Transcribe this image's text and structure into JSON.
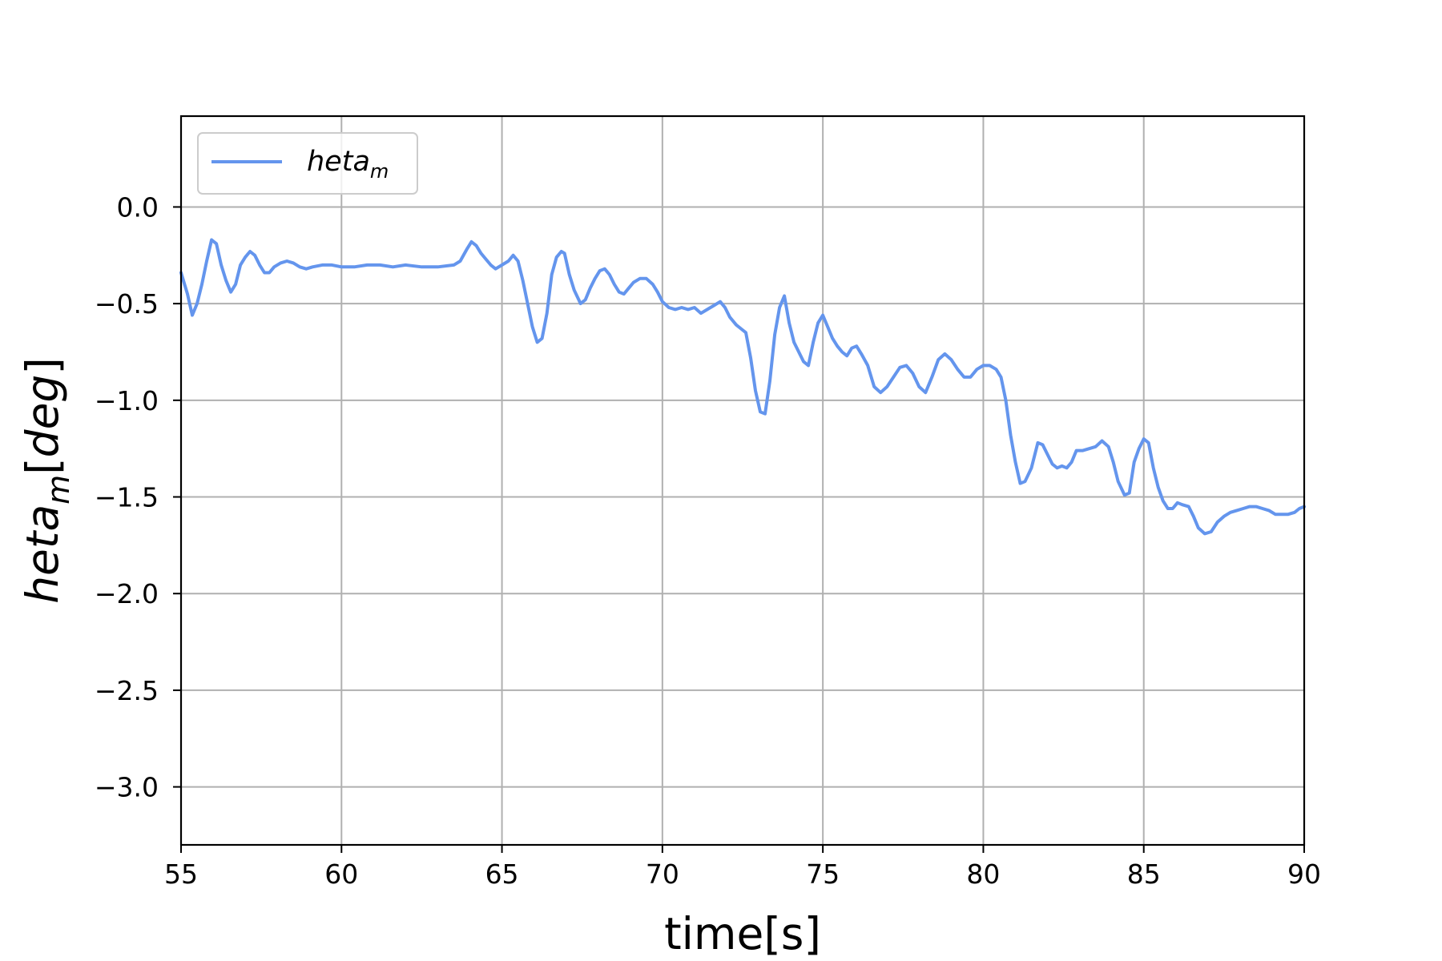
{
  "chart_data": {
    "type": "line",
    "xlabel": "time[s]",
    "ylabel_main": "heta",
    "ylabel_sub": "m",
    "ylabel_suffix": "[deg]",
    "xlim": [
      55,
      90
    ],
    "ylim": [
      -3.3,
      0.47
    ],
    "xticks": [
      55,
      60,
      65,
      70,
      75,
      80,
      85,
      90
    ],
    "xtick_labels": [
      "55",
      "60",
      "65",
      "70",
      "75",
      "80",
      "85",
      "90"
    ],
    "yticks": [
      0.0,
      -0.5,
      -1.0,
      -1.5,
      -2.0,
      -2.5,
      -3.0
    ],
    "ytick_labels": [
      "0.0",
      "−0.5",
      "−1.0",
      "−1.5",
      "−2.0",
      "−2.5",
      "−3.0"
    ],
    "grid": true,
    "legend_position": "top-left",
    "series": [
      {
        "name_main": "heta",
        "name_sub": "m",
        "color": "#6495ED",
        "points": [
          [
            55.0,
            -0.34
          ],
          [
            55.2,
            -0.45
          ],
          [
            55.35,
            -0.56
          ],
          [
            55.5,
            -0.5
          ],
          [
            55.65,
            -0.4
          ],
          [
            55.8,
            -0.28
          ],
          [
            55.95,
            -0.17
          ],
          [
            56.1,
            -0.19
          ],
          [
            56.25,
            -0.3
          ],
          [
            56.4,
            -0.38
          ],
          [
            56.55,
            -0.44
          ],
          [
            56.7,
            -0.4
          ],
          [
            56.85,
            -0.3
          ],
          [
            57.0,
            -0.26
          ],
          [
            57.15,
            -0.23
          ],
          [
            57.3,
            -0.25
          ],
          [
            57.45,
            -0.3
          ],
          [
            57.6,
            -0.34
          ],
          [
            57.75,
            -0.34
          ],
          [
            57.9,
            -0.31
          ],
          [
            58.1,
            -0.29
          ],
          [
            58.3,
            -0.28
          ],
          [
            58.5,
            -0.29
          ],
          [
            58.7,
            -0.31
          ],
          [
            58.9,
            -0.32
          ],
          [
            59.1,
            -0.31
          ],
          [
            59.4,
            -0.3
          ],
          [
            59.7,
            -0.3
          ],
          [
            60.0,
            -0.31
          ],
          [
            60.4,
            -0.31
          ],
          [
            60.8,
            -0.3
          ],
          [
            61.2,
            -0.3
          ],
          [
            61.6,
            -0.31
          ],
          [
            62.0,
            -0.3
          ],
          [
            62.5,
            -0.31
          ],
          [
            63.0,
            -0.31
          ],
          [
            63.5,
            -0.3
          ],
          [
            63.7,
            -0.28
          ],
          [
            63.9,
            -0.22
          ],
          [
            64.05,
            -0.18
          ],
          [
            64.2,
            -0.2
          ],
          [
            64.35,
            -0.24
          ],
          [
            64.5,
            -0.27
          ],
          [
            64.65,
            -0.3
          ],
          [
            64.8,
            -0.32
          ],
          [
            65.0,
            -0.3
          ],
          [
            65.2,
            -0.28
          ],
          [
            65.35,
            -0.25
          ],
          [
            65.5,
            -0.28
          ],
          [
            65.65,
            -0.38
          ],
          [
            65.8,
            -0.5
          ],
          [
            65.95,
            -0.62
          ],
          [
            66.1,
            -0.7
          ],
          [
            66.25,
            -0.68
          ],
          [
            66.4,
            -0.55
          ],
          [
            66.55,
            -0.35
          ],
          [
            66.7,
            -0.26
          ],
          [
            66.85,
            -0.23
          ],
          [
            66.95,
            -0.24
          ],
          [
            67.1,
            -0.35
          ],
          [
            67.25,
            -0.43
          ],
          [
            67.45,
            -0.5
          ],
          [
            67.6,
            -0.48
          ],
          [
            67.75,
            -0.42
          ],
          [
            67.9,
            -0.37
          ],
          [
            68.05,
            -0.33
          ],
          [
            68.2,
            -0.32
          ],
          [
            68.35,
            -0.35
          ],
          [
            68.5,
            -0.4
          ],
          [
            68.65,
            -0.44
          ],
          [
            68.8,
            -0.45
          ],
          [
            68.95,
            -0.42
          ],
          [
            69.1,
            -0.39
          ],
          [
            69.3,
            -0.37
          ],
          [
            69.5,
            -0.37
          ],
          [
            69.7,
            -0.4
          ],
          [
            69.85,
            -0.44
          ],
          [
            70.0,
            -0.49
          ],
          [
            70.2,
            -0.52
          ],
          [
            70.4,
            -0.53
          ],
          [
            70.6,
            -0.52
          ],
          [
            70.8,
            -0.53
          ],
          [
            71.0,
            -0.52
          ],
          [
            71.2,
            -0.55
          ],
          [
            71.4,
            -0.53
          ],
          [
            71.6,
            -0.51
          ],
          [
            71.8,
            -0.49
          ],
          [
            71.95,
            -0.52
          ],
          [
            72.1,
            -0.57
          ],
          [
            72.3,
            -0.61
          ],
          [
            72.45,
            -0.63
          ],
          [
            72.6,
            -0.65
          ],
          [
            72.75,
            -0.78
          ],
          [
            72.9,
            -0.95
          ],
          [
            73.05,
            -1.06
          ],
          [
            73.2,
            -1.07
          ],
          [
            73.35,
            -0.9
          ],
          [
            73.5,
            -0.66
          ],
          [
            73.65,
            -0.52
          ],
          [
            73.8,
            -0.46
          ],
          [
            73.95,
            -0.6
          ],
          [
            74.1,
            -0.7
          ],
          [
            74.25,
            -0.75
          ],
          [
            74.4,
            -0.8
          ],
          [
            74.55,
            -0.82
          ],
          [
            74.7,
            -0.7
          ],
          [
            74.85,
            -0.6
          ],
          [
            75.0,
            -0.56
          ],
          [
            75.15,
            -0.62
          ],
          [
            75.3,
            -0.68
          ],
          [
            75.45,
            -0.72
          ],
          [
            75.6,
            -0.75
          ],
          [
            75.75,
            -0.77
          ],
          [
            75.9,
            -0.73
          ],
          [
            76.05,
            -0.72
          ],
          [
            76.2,
            -0.76
          ],
          [
            76.4,
            -0.82
          ],
          [
            76.6,
            -0.93
          ],
          [
            76.8,
            -0.96
          ],
          [
            77.0,
            -0.93
          ],
          [
            77.2,
            -0.88
          ],
          [
            77.4,
            -0.83
          ],
          [
            77.6,
            -0.82
          ],
          [
            77.8,
            -0.86
          ],
          [
            78.0,
            -0.93
          ],
          [
            78.2,
            -0.96
          ],
          [
            78.4,
            -0.88
          ],
          [
            78.6,
            -0.79
          ],
          [
            78.8,
            -0.76
          ],
          [
            79.0,
            -0.79
          ],
          [
            79.2,
            -0.84
          ],
          [
            79.4,
            -0.88
          ],
          [
            79.6,
            -0.88
          ],
          [
            79.8,
            -0.84
          ],
          [
            80.0,
            -0.82
          ],
          [
            80.2,
            -0.82
          ],
          [
            80.4,
            -0.84
          ],
          [
            80.55,
            -0.88
          ],
          [
            80.7,
            -1.0
          ],
          [
            80.85,
            -1.18
          ],
          [
            81.0,
            -1.32
          ],
          [
            81.15,
            -1.43
          ],
          [
            81.3,
            -1.42
          ],
          [
            81.5,
            -1.35
          ],
          [
            81.7,
            -1.22
          ],
          [
            81.85,
            -1.23
          ],
          [
            82.0,
            -1.28
          ],
          [
            82.15,
            -1.33
          ],
          [
            82.3,
            -1.35
          ],
          [
            82.45,
            -1.34
          ],
          [
            82.6,
            -1.35
          ],
          [
            82.75,
            -1.32
          ],
          [
            82.9,
            -1.26
          ],
          [
            83.1,
            -1.26
          ],
          [
            83.3,
            -1.25
          ],
          [
            83.5,
            -1.24
          ],
          [
            83.7,
            -1.21
          ],
          [
            83.9,
            -1.24
          ],
          [
            84.05,
            -1.32
          ],
          [
            84.2,
            -1.42
          ],
          [
            84.4,
            -1.49
          ],
          [
            84.55,
            -1.48
          ],
          [
            84.7,
            -1.32
          ],
          [
            84.85,
            -1.25
          ],
          [
            85.0,
            -1.2
          ],
          [
            85.15,
            -1.22
          ],
          [
            85.3,
            -1.35
          ],
          [
            85.45,
            -1.45
          ],
          [
            85.6,
            -1.52
          ],
          [
            85.75,
            -1.56
          ],
          [
            85.9,
            -1.56
          ],
          [
            86.05,
            -1.53
          ],
          [
            86.2,
            -1.54
          ],
          [
            86.4,
            -1.55
          ],
          [
            86.55,
            -1.6
          ],
          [
            86.7,
            -1.66
          ],
          [
            86.9,
            -1.69
          ],
          [
            87.1,
            -1.68
          ],
          [
            87.3,
            -1.63
          ],
          [
            87.5,
            -1.6
          ],
          [
            87.7,
            -1.58
          ],
          [
            87.9,
            -1.57
          ],
          [
            88.1,
            -1.56
          ],
          [
            88.3,
            -1.55
          ],
          [
            88.5,
            -1.55
          ],
          [
            88.7,
            -1.56
          ],
          [
            88.9,
            -1.57
          ],
          [
            89.1,
            -1.59
          ],
          [
            89.3,
            -1.59
          ],
          [
            89.5,
            -1.59
          ],
          [
            89.7,
            -1.58
          ],
          [
            89.85,
            -1.56
          ],
          [
            90.0,
            -1.55
          ]
        ]
      }
    ]
  }
}
